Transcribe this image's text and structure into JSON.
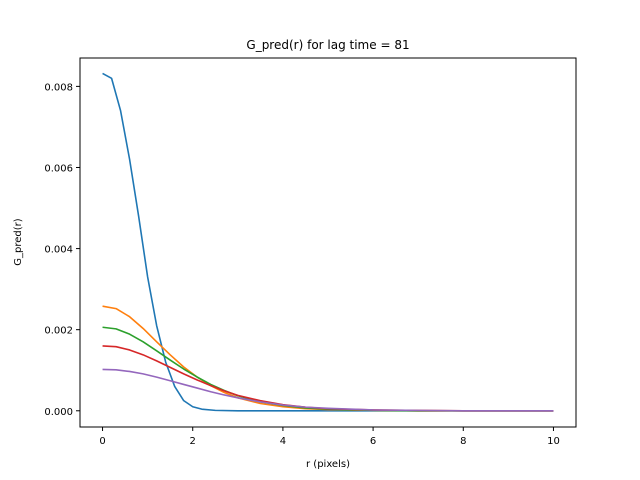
{
  "chart_data": {
    "type": "line",
    "title": "G_pred(r) for lag time = 81",
    "xlabel": "r (pixels)",
    "ylabel": "G_pred(r)",
    "xlim": [
      -0.5,
      10.5
    ],
    "ylim": [
      -0.0004,
      0.0087
    ],
    "xticks": [
      0,
      2,
      4,
      6,
      8,
      10
    ],
    "xtick_labels": [
      "0",
      "2",
      "4",
      "6",
      "8",
      "10"
    ],
    "yticks": [
      0.0,
      0.002,
      0.004,
      0.006,
      0.008
    ],
    "ytick_labels": [
      "0.000",
      "0.002",
      "0.004",
      "0.006",
      "0.008"
    ],
    "grid": false,
    "legend": "none",
    "series": [
      {
        "color": "#1f77b4",
        "x": [
          0,
          0.2,
          0.4,
          0.6,
          0.8,
          1.0,
          1.2,
          1.4,
          1.6,
          1.8,
          2.0,
          2.2,
          2.5,
          3.0,
          4.0,
          6.0,
          8.0,
          10.0
        ],
        "y": [
          0.00832,
          0.0082,
          0.0074,
          0.0062,
          0.0048,
          0.0033,
          0.0021,
          0.0012,
          0.0006,
          0.00025,
          0.0001,
          4e-05,
          1e-05,
          0.0,
          0.0,
          0.0,
          0.0,
          0.0
        ]
      },
      {
        "color": "#ff7f0e",
        "x": [
          0,
          0.3,
          0.6,
          0.9,
          1.2,
          1.5,
          1.8,
          2.1,
          2.4,
          2.7,
          3.0,
          3.5,
          4.0,
          4.5,
          5.0,
          6.0,
          7.0,
          8.0,
          10.0
        ],
        "y": [
          0.00258,
          0.00252,
          0.00232,
          0.00203,
          0.0017,
          0.00138,
          0.00108,
          0.00083,
          0.00062,
          0.00045,
          0.00032,
          0.00018,
          0.0001,
          5e-05,
          3e-05,
          1e-05,
          0.0,
          0.0,
          0.0
        ]
      },
      {
        "color": "#2ca02c",
        "x": [
          0,
          0.3,
          0.6,
          0.9,
          1.2,
          1.5,
          1.8,
          2.1,
          2.4,
          2.7,
          3.0,
          3.5,
          4.0,
          4.5,
          5.0,
          6.0,
          7.0,
          8.0,
          10.0
        ],
        "y": [
          0.00206,
          0.00202,
          0.00189,
          0.0017,
          0.00148,
          0.00125,
          0.00103,
          0.00083,
          0.00065,
          0.0005,
          0.00037,
          0.00022,
          0.00013,
          7e-05,
          4e-05,
          1e-05,
          0.0,
          0.0,
          0.0
        ]
      },
      {
        "color": "#d62728",
        "x": [
          0,
          0.3,
          0.6,
          0.9,
          1.2,
          1.5,
          1.8,
          2.1,
          2.4,
          2.7,
          3.0,
          3.5,
          4.0,
          4.5,
          5.0,
          6.0,
          7.0,
          8.0,
          10.0
        ],
        "y": [
          0.0016,
          0.00158,
          0.0015,
          0.00138,
          0.00123,
          0.00107,
          0.00091,
          0.00076,
          0.00062,
          0.00049,
          0.00038,
          0.00025,
          0.00015,
          9e-05,
          5e-05,
          2e-05,
          1e-05,
          0.0,
          0.0
        ]
      },
      {
        "color": "#9467bd",
        "x": [
          0,
          0.3,
          0.6,
          0.9,
          1.2,
          1.5,
          1.8,
          2.1,
          2.4,
          2.7,
          3.0,
          3.5,
          4.0,
          4.5,
          5.0,
          6.0,
          7.0,
          8.0,
          10.0
        ],
        "y": [
          0.00102,
          0.00101,
          0.00097,
          0.00091,
          0.00083,
          0.00074,
          0.00065,
          0.00056,
          0.00047,
          0.00039,
          0.00032,
          0.00022,
          0.00014,
          9e-05,
          6e-05,
          2e-05,
          1e-05,
          0.0,
          0.0
        ]
      }
    ]
  }
}
